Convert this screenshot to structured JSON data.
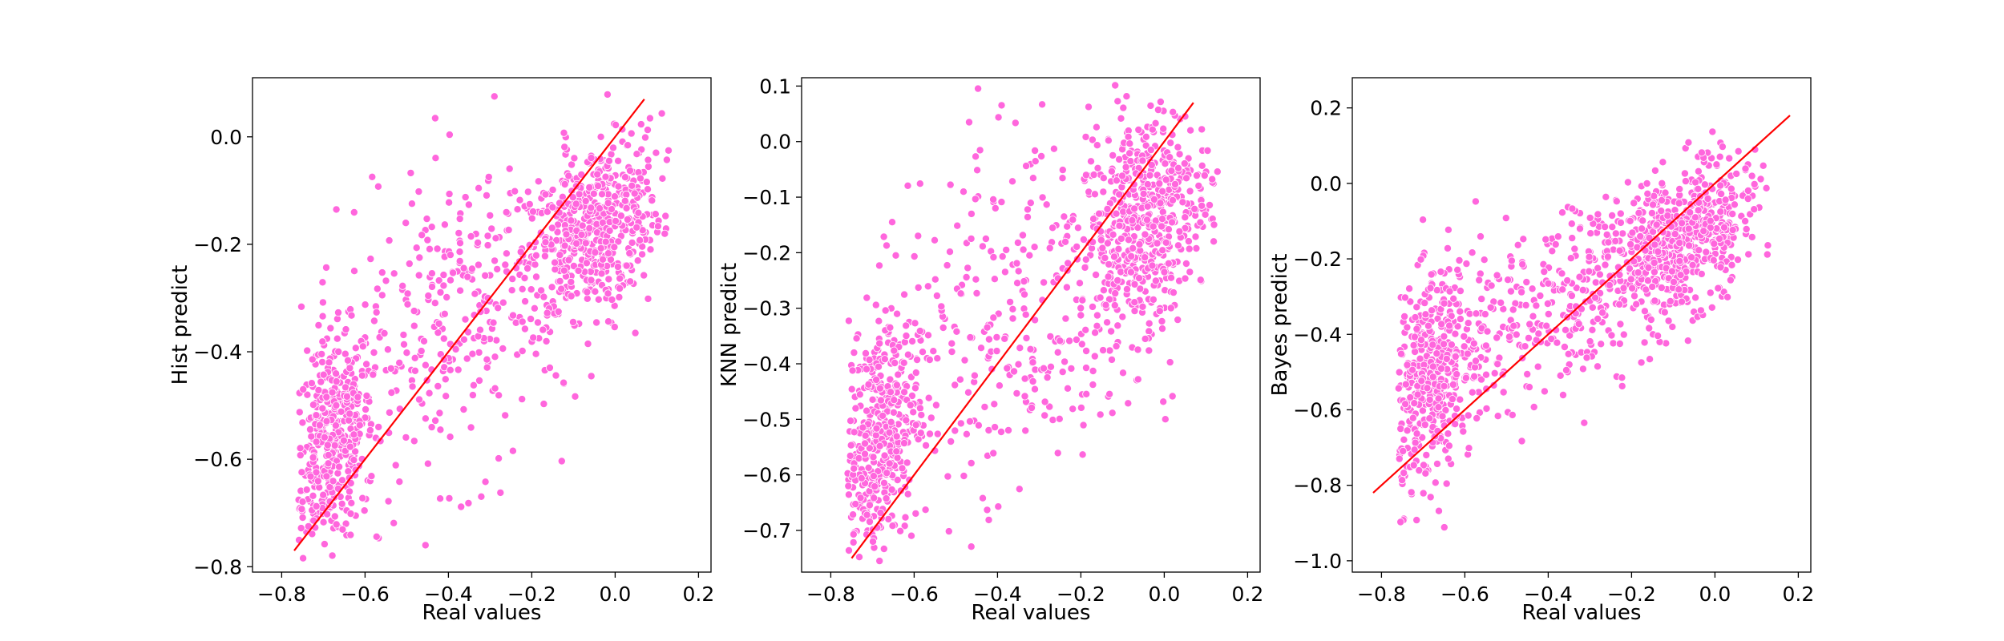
{
  "chart_data": [
    {
      "type": "scatter",
      "xlabel": "Real values",
      "ylabel": "Hist predict",
      "xlim": [
        -0.87,
        0.23
      ],
      "ylim": [
        -0.81,
        0.11
      ],
      "xticks": [
        -0.8,
        -0.6,
        -0.4,
        -0.2,
        0.0,
        0.2
      ],
      "yticks": [
        -0.8,
        -0.6,
        -0.4,
        -0.2,
        0.0
      ],
      "grid": false,
      "colors": {
        "points": "#ff66dd",
        "line": "#ff0000"
      },
      "reference_line": {
        "x": [
          -0.77,
          0.07
        ],
        "y": [
          -0.77,
          0.07
        ]
      },
      "point_clusters": [
        {
          "cx": -0.68,
          "cy": -0.57,
          "sx": 0.05,
          "sy": 0.1,
          "n": 450,
          "rho": 0.3
        },
        {
          "cx": -0.05,
          "cy": -0.17,
          "sx": 0.08,
          "sy": 0.08,
          "n": 520,
          "rho": 0.4
        },
        {
          "cx": -0.35,
          "cy": -0.33,
          "sx": 0.2,
          "sy": 0.17,
          "n": 380,
          "rho": 0.5
        }
      ]
    },
    {
      "type": "scatter",
      "xlabel": "Real values",
      "ylabel": "KNN predict",
      "xlim": [
        -0.87,
        0.23
      ],
      "ylim": [
        -0.775,
        0.115
      ],
      "xticks": [
        -0.8,
        -0.6,
        -0.4,
        -0.2,
        0.0,
        0.2
      ],
      "yticks": [
        -0.7,
        -0.6,
        -0.5,
        -0.4,
        -0.3,
        -0.2,
        -0.1,
        0.0,
        0.1
      ],
      "grid": false,
      "colors": {
        "points": "#ff66dd",
        "line": "#ff0000"
      },
      "reference_line": {
        "x": [
          -0.75,
          0.07
        ],
        "y": [
          -0.75,
          0.07
        ]
      },
      "point_clusters": [
        {
          "cx": -0.69,
          "cy": -0.54,
          "sx": 0.05,
          "sy": 0.11,
          "n": 430,
          "rho": 0.3
        },
        {
          "cx": -0.05,
          "cy": -0.14,
          "sx": 0.08,
          "sy": 0.1,
          "n": 500,
          "rho": 0.3
        },
        {
          "cx": -0.35,
          "cy": -0.3,
          "sx": 0.22,
          "sy": 0.19,
          "n": 400,
          "rho": 0.4
        }
      ]
    },
    {
      "type": "scatter",
      "xlabel": "Real values",
      "ylabel": "Bayes predict",
      "xlim": [
        -0.87,
        0.23
      ],
      "ylim": [
        -1.03,
        0.28
      ],
      "xticks": [
        -0.8,
        -0.6,
        -0.4,
        -0.2,
        0.0,
        0.2
      ],
      "yticks": [
        -1.0,
        -0.8,
        -0.6,
        -0.4,
        -0.2,
        0.0,
        0.2
      ],
      "grid": false,
      "colors": {
        "points": "#ff66dd",
        "line": "#ff0000"
      },
      "reference_line": {
        "x": [
          -0.82,
          0.18
        ],
        "y": [
          -0.82,
          0.18
        ]
      },
      "point_clusters": [
        {
          "cx": -0.68,
          "cy": -0.52,
          "sx": 0.05,
          "sy": 0.14,
          "n": 450,
          "rho": 0.3
        },
        {
          "cx": -0.08,
          "cy": -0.15,
          "sx": 0.09,
          "sy": 0.1,
          "n": 550,
          "rho": 0.4
        },
        {
          "cx": -0.35,
          "cy": -0.3,
          "sx": 0.18,
          "sy": 0.15,
          "n": 380,
          "rho": 0.6
        }
      ]
    }
  ]
}
